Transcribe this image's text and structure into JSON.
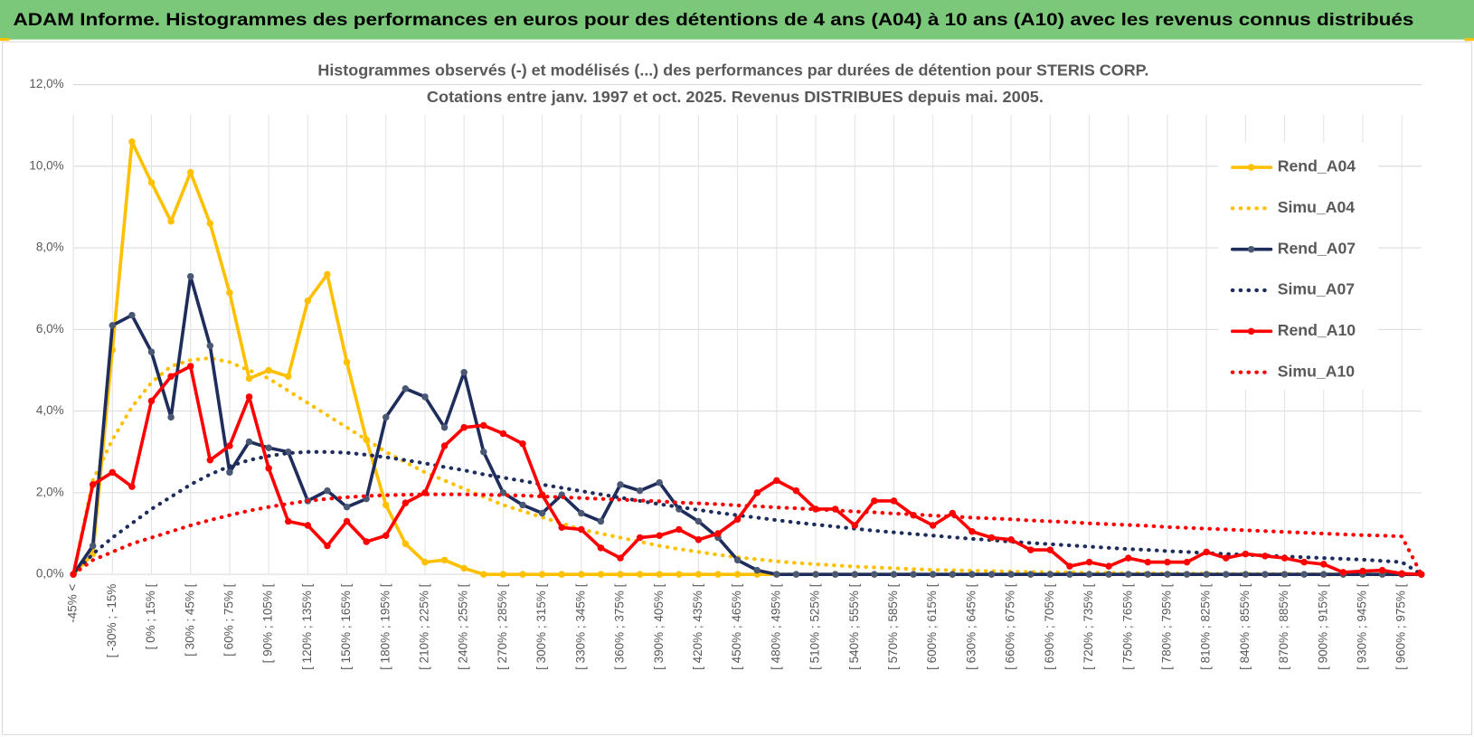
{
  "header": {
    "title": "ADAM Informe. Histogrammes des performances en euros pour des détentions de 4 ans (A04) à 10 ans (A10) avec les revenus connus distribués"
  },
  "chart_data": {
    "type": "line",
    "title": "Histogrammes observés (-) et modélisés (...) des performances par durées de détention pour STERIS CORP.",
    "subtitle": "Cotations entre janv. 1997 et oct. 2025.  Revenus DISTRIBUES depuis mai. 2005.",
    "categories": [
      "-45% <",
      null,
      "[ -30% ; -15%",
      null,
      "[ 0% ; 15% [",
      null,
      "[ 30% ; 45% [",
      null,
      "[ 60% ; 75% [",
      null,
      "[ 90% ; 105% [",
      null,
      "[ 120% ; 135% [",
      null,
      "[ 150% ; 165% [",
      null,
      "[ 180% ; 195% [",
      null,
      "[ 210% ; 225% [",
      null,
      "[ 240% ; 255% [",
      null,
      "[ 270% ; 285% [",
      null,
      "[ 300% ; 315% [",
      null,
      "[ 330% ; 345% [",
      null,
      "[ 360% ; 375% [",
      null,
      "[ 390% ; 405% [",
      null,
      "[ 420% ; 435% [",
      null,
      "[ 450% ; 465% [",
      null,
      "[ 480% ; 495% [",
      null,
      "[ 510% ; 525% [",
      null,
      "[ 540% ; 555% [",
      null,
      "[ 570% ; 585% [",
      null,
      "[ 600% ; 615% [",
      null,
      "[ 630% ; 645% [",
      null,
      "[ 660% ; 675% [",
      null,
      "[ 690% ; 705% [",
      null,
      "[ 720% ; 735% [",
      null,
      "[ 750% ; 765% [",
      null,
      "[ 780% ; 795% [",
      null,
      "[ 810% ; 825% [",
      null,
      "[ 840% ; 855% [",
      null,
      "[ 870% ; 885% [",
      null,
      "[ 900% ; 915% [",
      null,
      "[ 930% ; 945% [",
      null,
      "[ 960% ; 975% [",
      null
    ],
    "ylim": [
      0,
      12
    ],
    "yticks": [
      {
        "value": 0,
        "label": "0,0%"
      },
      {
        "value": 2,
        "label": "2,0%"
      },
      {
        "value": 4,
        "label": "4,0%"
      },
      {
        "value": 6,
        "label": "6,0%"
      },
      {
        "value": 8,
        "label": "8,0%"
      },
      {
        "value": 10,
        "label": "10,0%"
      },
      {
        "value": 12,
        "label": "12,0%"
      }
    ],
    "grid": true,
    "legend": "right",
    "series": [
      {
        "name": "Rend_A04",
        "color": "#ffc000",
        "marker_color": "#ffc000",
        "line_style": "solid",
        "values": [
          0,
          0.5,
          5.5,
          10.6,
          9.6,
          8.65,
          9.85,
          8.6,
          6.9,
          4.8,
          5.0,
          4.85,
          6.7,
          7.35,
          5.2,
          3.3,
          1.7,
          0.75,
          0.3,
          0.35,
          0.15,
          0,
          0,
          0,
          0,
          0,
          0,
          0,
          0,
          0,
          0,
          0,
          0,
          0,
          0,
          0,
          0,
          0,
          0,
          0,
          0,
          0,
          0,
          0,
          0,
          0,
          0,
          0,
          0,
          0,
          0,
          0,
          0,
          0,
          0,
          0,
          0,
          0,
          0,
          0,
          0,
          0,
          0,
          0,
          0,
          0,
          0,
          0,
          0,
          0
        ]
      },
      {
        "name": "Simu_A04",
        "color": "#ffc000",
        "line_style": "dotted",
        "values": [
          0,
          2.3,
          3.3,
          4.1,
          4.7,
          5.1,
          5.25,
          5.3,
          5.2,
          5.0,
          4.8,
          4.5,
          4.2,
          3.9,
          3.6,
          3.3,
          3.0,
          2.75,
          2.5,
          2.3,
          2.1,
          1.9,
          1.7,
          1.55,
          1.4,
          1.25,
          1.1,
          1.0,
          0.9,
          0.8,
          0.7,
          0.62,
          0.55,
          0.48,
          0.42,
          0.37,
          0.32,
          0.28,
          0.25,
          0.22,
          0.19,
          0.17,
          0.15,
          0.13,
          0.11,
          0.1,
          0.09,
          0.08,
          0.07,
          0.06,
          0.05,
          0.05,
          0.04,
          0.04,
          0.03,
          0.03,
          0.02,
          0.02,
          0.02,
          0.01,
          0.01,
          0.01,
          0.01,
          0.01,
          0,
          0,
          0,
          0,
          0,
          0
        ]
      },
      {
        "name": "Rend_A07",
        "color": "#1f2d5c",
        "marker_color": "#4a5873",
        "line_style": "solid",
        "values": [
          0,
          0.7,
          6.1,
          6.35,
          5.45,
          3.85,
          7.3,
          5.6,
          2.5,
          3.25,
          3.1,
          3.0,
          1.8,
          2.05,
          1.65,
          1.85,
          3.85,
          4.55,
          4.35,
          3.6,
          4.95,
          3.0,
          2.0,
          1.7,
          1.5,
          1.95,
          1.5,
          1.3,
          2.2,
          2.05,
          2.25,
          1.6,
          1.3,
          0.9,
          0.35,
          0.1,
          0,
          0,
          0,
          0,
          0,
          0,
          0,
          0,
          0,
          0,
          0,
          0,
          0,
          0,
          0,
          0,
          0,
          0,
          0,
          0,
          0,
          0,
          0,
          0,
          0,
          0,
          0,
          0,
          0,
          0,
          0,
          0,
          0,
          0
        ]
      },
      {
        "name": "Simu_A07",
        "color": "#1f2d5c",
        "line_style": "dotted",
        "values": [
          0,
          0.5,
          0.9,
          1.25,
          1.6,
          1.9,
          2.2,
          2.45,
          2.65,
          2.8,
          2.9,
          2.97,
          3.0,
          3.0,
          2.98,
          2.93,
          2.87,
          2.8,
          2.72,
          2.63,
          2.55,
          2.45,
          2.37,
          2.29,
          2.2,
          2.12,
          2.04,
          1.96,
          1.88,
          1.8,
          1.72,
          1.65,
          1.58,
          1.51,
          1.45,
          1.39,
          1.33,
          1.27,
          1.22,
          1.17,
          1.12,
          1.07,
          1.03,
          0.99,
          0.95,
          0.91,
          0.87,
          0.84,
          0.8,
          0.77,
          0.74,
          0.71,
          0.68,
          0.65,
          0.62,
          0.6,
          0.57,
          0.55,
          0.52,
          0.5,
          0.48,
          0.46,
          0.44,
          0.42,
          0.4,
          0.38,
          0.36,
          0.33,
          0.3,
          0
        ]
      },
      {
        "name": "Rend_A10",
        "color": "#ff0000",
        "marker_color": "#ff0000",
        "line_style": "solid",
        "values": [
          0,
          2.2,
          2.5,
          2.15,
          4.25,
          4.85,
          5.1,
          2.8,
          3.15,
          4.35,
          2.6,
          1.3,
          1.2,
          0.7,
          1.3,
          0.8,
          0.95,
          1.75,
          2.0,
          3.15,
          3.6,
          3.65,
          3.45,
          3.2,
          1.95,
          1.15,
          1.1,
          0.65,
          0.4,
          0.9,
          0.95,
          1.1,
          0.85,
          1.0,
          1.35,
          2.0,
          2.3,
          2.05,
          1.6,
          1.6,
          1.2,
          1.8,
          1.8,
          1.45,
          1.2,
          1.5,
          1.05,
          0.9,
          0.85,
          0.6,
          0.6,
          0.2,
          0.3,
          0.2,
          0.4,
          0.3,
          0.3,
          0.3,
          0.55,
          0.4,
          0.5,
          0.45,
          0.4,
          0.3,
          0.25,
          0.05,
          0.08,
          0.1,
          0.02,
          0
        ]
      },
      {
        "name": "Simu_A10",
        "color": "#ff0000",
        "line_style": "dotted",
        "values": [
          0,
          0.35,
          0.55,
          0.75,
          0.9,
          1.05,
          1.2,
          1.33,
          1.45,
          1.56,
          1.65,
          1.73,
          1.8,
          1.85,
          1.89,
          1.92,
          1.94,
          1.95,
          1.96,
          1.96,
          1.96,
          1.95,
          1.94,
          1.93,
          1.91,
          1.89,
          1.87,
          1.85,
          1.83,
          1.81,
          1.79,
          1.76,
          1.74,
          1.72,
          1.69,
          1.67,
          1.64,
          1.62,
          1.59,
          1.57,
          1.54,
          1.52,
          1.49,
          1.47,
          1.44,
          1.42,
          1.39,
          1.37,
          1.35,
          1.32,
          1.3,
          1.28,
          1.25,
          1.23,
          1.21,
          1.19,
          1.16,
          1.14,
          1.12,
          1.1,
          1.08,
          1.06,
          1.04,
          1.02,
          1.0,
          0.98,
          0.96,
          0.95,
          0.93,
          0
        ]
      }
    ]
  }
}
